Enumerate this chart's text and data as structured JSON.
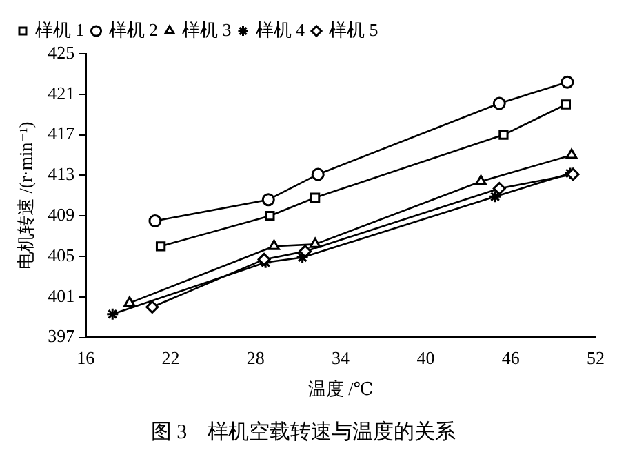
{
  "chart_data": {
    "type": "line",
    "title": "图 3　样机空载转速与温度的关系",
    "xlabel": "温度 /℃",
    "ylabel": "电机转速 /(r·min⁻¹)",
    "xlim": [
      16,
      52
    ],
    "xticks": [
      16,
      22,
      28,
      34,
      40,
      46,
      52
    ],
    "ylim": [
      397,
      425
    ],
    "yticks": [
      397,
      401,
      405,
      409,
      413,
      417,
      421,
      425
    ],
    "grid": false,
    "legend": "top",
    "line_style": "solid",
    "series": [
      {
        "name": "样机 1",
        "color": "#000000",
        "marker": "square",
        "x": [
          21.3,
          29.0,
          32.2,
          45.5,
          49.9
        ],
        "values": [
          406.0,
          409.0,
          410.8,
          417.0,
          420.0
        ]
      },
      {
        "name": "样机 2",
        "color": "#000000",
        "marker": "circle",
        "x": [
          20.9,
          28.9,
          32.4,
          45.2,
          50.0
        ],
        "values": [
          408.5,
          410.6,
          413.1,
          420.1,
          422.2
        ]
      },
      {
        "name": "样机 3",
        "color": "#000000",
        "marker": "triangle",
        "x": [
          19.1,
          29.3,
          32.2,
          43.9,
          50.3
        ],
        "values": [
          400.4,
          406.0,
          406.2,
          412.4,
          415.0
        ]
      },
      {
        "name": "样机 4",
        "color": "#000000",
        "marker": "cross",
        "x": [
          17.9,
          28.7,
          31.3,
          44.9,
          50.2
        ],
        "values": [
          399.3,
          404.4,
          404.9,
          410.9,
          413.2
        ]
      },
      {
        "name": "样机 5",
        "color": "#000000",
        "marker": "diamond",
        "x": [
          20.7,
          28.6,
          31.5,
          45.2,
          50.4
        ],
        "values": [
          400.0,
          404.7,
          405.5,
          411.7,
          413.1
        ]
      }
    ]
  }
}
